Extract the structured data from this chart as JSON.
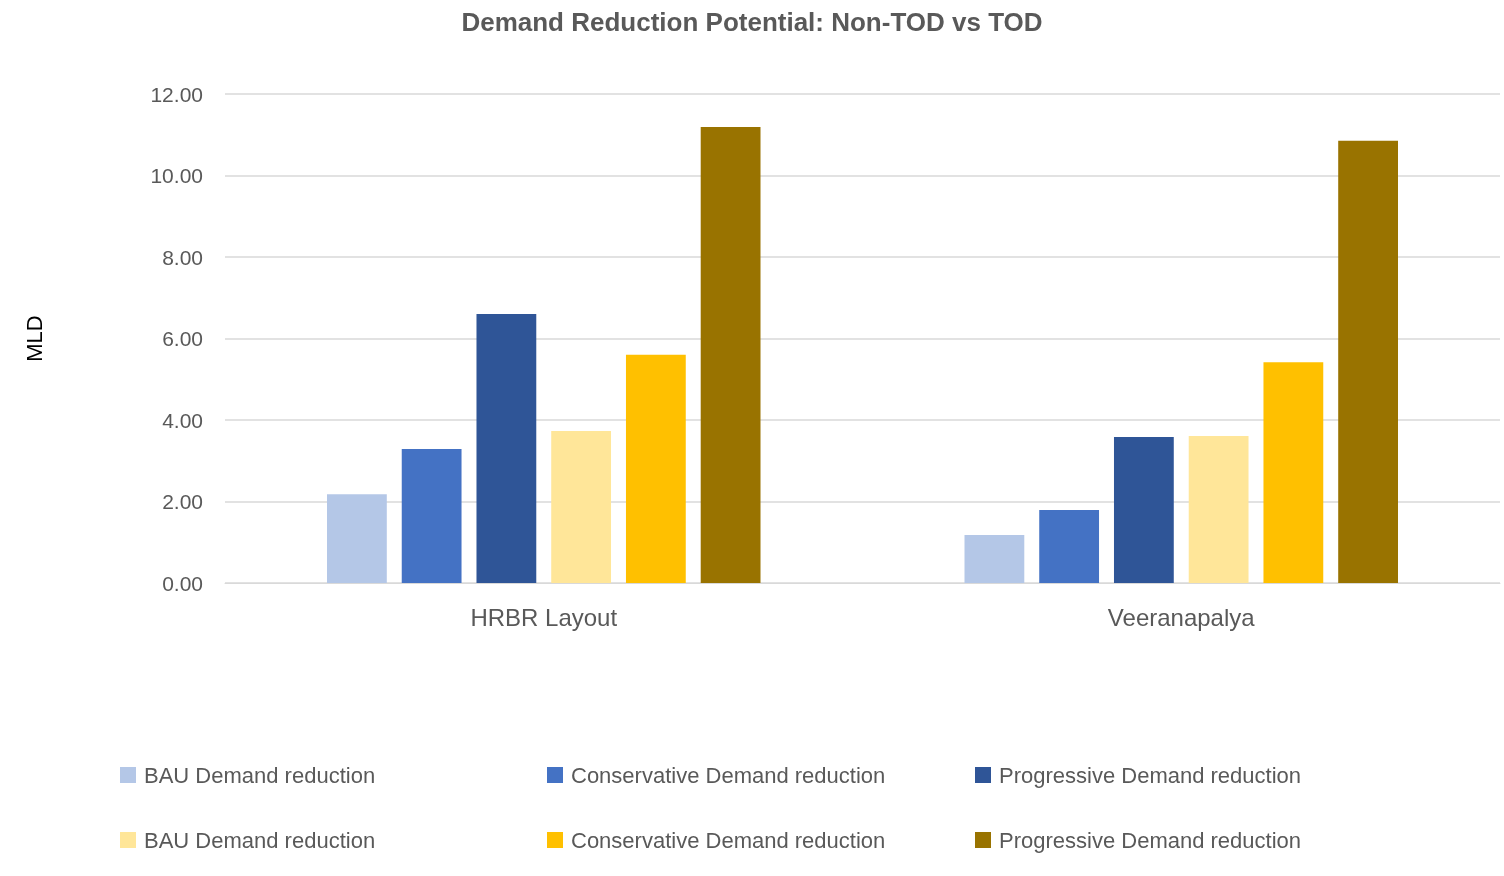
{
  "chart_data": {
    "type": "bar",
    "title": "Demand Reduction Potential: Non-TOD vs TOD",
    "ylabel": "MLD",
    "categories": [
      "HRBR Layout",
      "Veeranapalya"
    ],
    "series": [
      {
        "name": "BAU Demand reduction",
        "color": "#b4c7e7",
        "values": [
          2.18,
          1.18
        ]
      },
      {
        "name": "Conservative Demand reduction",
        "color": "#4472c4",
        "values": [
          3.29,
          1.79
        ]
      },
      {
        "name": "Progressive Demand reduction",
        "color": "#2f5597",
        "values": [
          6.6,
          3.58
        ]
      },
      {
        "name": "BAU Demand reduction",
        "color": "#ffe699",
        "values": [
          3.73,
          3.61
        ]
      },
      {
        "name": "Conservative Demand reduction",
        "color": "#ffc000",
        "values": [
          5.6,
          5.42
        ]
      },
      {
        "name": "Progressive Demand reduction",
        "color": "#997300",
        "values": [
          11.19,
          10.85
        ]
      }
    ],
    "ylim": [
      0,
      12
    ],
    "yticks": [
      {
        "value": 0,
        "label": "0.00"
      },
      {
        "value": 2,
        "label": "2.00"
      },
      {
        "value": 4,
        "label": "4.00"
      },
      {
        "value": 6,
        "label": "6.00"
      },
      {
        "value": 8,
        "label": "8.00"
      },
      {
        "value": 10,
        "label": "10.00"
      },
      {
        "value": 12,
        "label": "12.00"
      }
    ],
    "grid": "y",
    "legend": "bottom"
  }
}
